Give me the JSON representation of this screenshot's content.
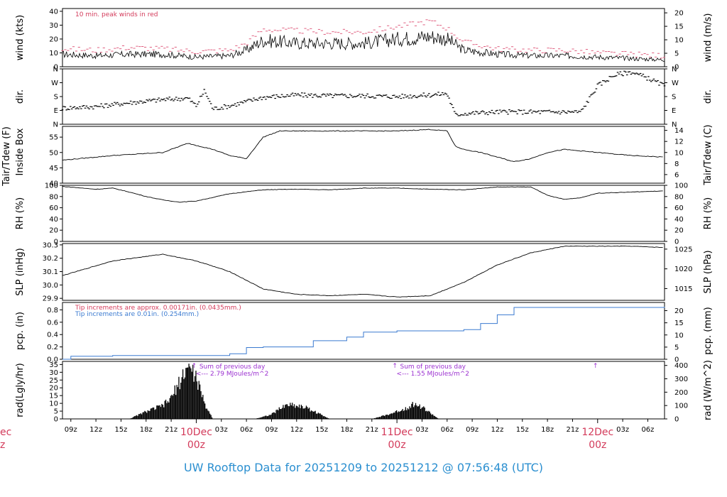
{
  "chart_data": {
    "type": "line",
    "title": "UW Rooftop Data for 20251209  to  20251212 @ 07:56:48  (UTC)",
    "x_tick_labels": [
      "09z",
      "12z",
      "15z",
      "18z",
      "21z",
      "03z",
      "06z",
      "09z",
      "12z",
      "15z",
      "18z",
      "21z",
      "03z",
      "06z",
      "09z",
      "12z",
      "15z",
      "18z",
      "21z",
      "03z",
      "06z"
    ],
    "day_labels": [
      {
        "date": "10Dec",
        "hour": "00z"
      },
      {
        "date": "11Dec",
        "hour": "00z"
      },
      {
        "date": "12Dec",
        "hour": "00z"
      }
    ],
    "cut_day_label": {
      "date": "ec",
      "hour": "z"
    },
    "x_hours_range": [
      -16,
      56
    ],
    "panels": [
      {
        "id": "wind",
        "ylabel_left": "wind (kts)",
        "ylabel_right": "wind (m/s)",
        "ylim": [
          0,
          42
        ],
        "ticks_left": [
          0,
          10,
          20,
          30,
          40
        ],
        "ticks_right": [
          0,
          5,
          10,
          15,
          20
        ],
        "right_scale": 0.5144,
        "annotation": "10 min. peak winds in red",
        "series": [
          {
            "kind": "mean",
            "x": [
              -16,
              -12,
              -8,
              -4,
              0,
              4,
              6,
              8,
              12,
              16,
              20,
              24,
              28,
              30,
              32,
              36,
              40,
              44,
              48,
              52,
              56
            ],
            "y": [
              9,
              8,
              9,
              9,
              7,
              8,
              12,
              19,
              17,
              17,
              17,
              20,
              22,
              20,
              12,
              9,
              8,
              8,
              7,
              6,
              5
            ]
          },
          {
            "kind": "peak",
            "x": [
              -16,
              -12,
              -8,
              -4,
              0,
              4,
              6,
              8,
              12,
              16,
              20,
              24,
              28,
              30,
              32,
              36,
              40,
              44,
              48,
              52,
              56
            ],
            "y": [
              13,
              12,
              14,
              13,
              11,
              12,
              17,
              27,
              26,
              25,
              25,
              29,
              33,
              28,
              18,
              13,
              12,
              12,
              10,
              9,
              8
            ]
          }
        ]
      },
      {
        "id": "dir",
        "ylabel_left": "dir.",
        "ylabel_right": "dir.",
        "ylim": [
          0,
          360
        ],
        "ticks_left_labels": [
          "N",
          "E",
          "S",
          "W",
          "N"
        ],
        "ticks_left_values": [
          0,
          90,
          180,
          270,
          360
        ],
        "series": [
          {
            "kind": "scatter",
            "x": [
              -16,
              -12,
              -8,
              -4,
              -1,
              0,
              1,
              2,
              4,
              8,
              12,
              16,
              20,
              24,
              28,
              30,
              31,
              32,
              36,
              40,
              44,
              46,
              48,
              50,
              52,
              54,
              56
            ],
            "y": [
              105,
              115,
              140,
              160,
              170,
              120,
              220,
              100,
              120,
              175,
              190,
              185,
              185,
              180,
              190,
              200,
              60,
              70,
              80,
              80,
              80,
              80,
              250,
              320,
              340,
              300,
              250
            ]
          }
        ]
      },
      {
        "id": "temp",
        "ylabel_left": "Tair/Tdew (F)",
        "ylabel_left2": "Inside Box",
        "ylabel_right": "Tair/Tdew (C)",
        "ylim": [
          40,
          58.5
        ],
        "ticks_left": [
          40,
          45,
          50,
          55
        ],
        "ticks_right": [
          6,
          8,
          10,
          12,
          14
        ],
        "series": [
          {
            "kind": "line",
            "x": [
              -16,
              -14,
              -10,
              -4,
              -1,
              2,
              4,
              6,
              8,
              10,
              12,
              16,
              20,
              24,
              28,
              30,
              31,
              32,
              34,
              38,
              40,
              42,
              44,
              48,
              52,
              56
            ],
            "y": [
              47.5,
              48,
              49,
              50,
              53,
              51,
              49,
              48,
              55,
              57,
              57,
              57,
              57,
              57,
              57.5,
              57,
              52,
              51,
              50,
              47,
              48,
              50,
              51,
              50,
              49,
              48.5
            ]
          }
        ]
      },
      {
        "id": "rh",
        "ylabel_left": "RH (%)",
        "ylabel_right": "RH (%)",
        "ylim": [
          0,
          100
        ],
        "ticks_left": [
          0,
          20,
          40,
          60,
          80,
          100
        ],
        "ticks_right": [
          0,
          20,
          40,
          60,
          80,
          100
        ],
        "series": [
          {
            "kind": "line",
            "x": [
              -16,
              -12,
              -10,
              -8,
              -6,
              -4,
              -2,
              0,
              4,
              8,
              12,
              16,
              20,
              24,
              28,
              32,
              36,
              40,
              41,
              42,
              44,
              46,
              48,
              52,
              56
            ],
            "y": [
              98,
              93,
              95,
              88,
              80,
              74,
              70,
              72,
              85,
              92,
              93,
              92,
              95,
              95,
              93,
              92,
              97,
              97,
              90,
              82,
              75,
              78,
              86,
              88,
              90
            ]
          }
        ]
      },
      {
        "id": "slp",
        "ylabel_left": "SLP (inHg)",
        "ylabel_right": "SLP (hPa)",
        "ylim": [
          29.885,
          30.31
        ],
        "ticks_left": [
          29.9,
          30.0,
          30.1,
          30.2,
          30.3
        ],
        "ticks_right": [
          1015,
          1020,
          1025
        ],
        "series": [
          {
            "kind": "line",
            "x": [
              -16,
              -10,
              -4,
              0,
              4,
              8,
              12,
              16,
              20,
              24,
              28,
              32,
              36,
              40,
              44,
              48,
              52,
              56
            ],
            "y": [
              30.07,
              30.18,
              30.23,
              30.18,
              30.1,
              29.97,
              29.93,
              29.92,
              29.93,
              29.91,
              29.92,
              30.02,
              30.15,
              30.24,
              30.29,
              30.29,
              30.29,
              30.28
            ]
          }
        ]
      },
      {
        "id": "pcp",
        "ylabel_left": "pcp. (in)",
        "ylabel_right": "pcp. (mm)",
        "ylim": [
          0,
          0.92
        ],
        "ticks_left": [
          0.0,
          0.2,
          0.4,
          0.6,
          0.8
        ],
        "ticks_right": [
          0,
          5,
          10,
          15,
          20
        ],
        "annotation_1": "Tip increments are approx. 0.00171in. (0.0435mm.)",
        "annotation_2": "Tip increments are 0.01in. (0.254mm.)",
        "series": [
          {
            "kind": "step",
            "x": [
              -16,
              -15,
              -10,
              4,
              6,
              8,
              14,
              18,
              20,
              24,
              28,
              32,
              34,
              36,
              38,
              56
            ],
            "y": [
              0,
              0.05,
              0.06,
              0.09,
              0.19,
              0.2,
              0.3,
              0.36,
              0.44,
              0.46,
              0.46,
              0.48,
              0.58,
              0.72,
              0.84,
              0.85
            ]
          }
        ]
      },
      {
        "id": "rad",
        "ylabel_left": "rad(Lgly/hr)",
        "ylabel_right": "rad (W/m^2)",
        "ylim": [
          0,
          37
        ],
        "ticks_left": [
          0,
          5,
          10,
          15,
          20,
          25,
          30,
          35
        ],
        "ticks_right": [
          0,
          100,
          200,
          300,
          400
        ],
        "right_scale": 11.63,
        "daily_sum_notes": [
          {
            "x": 4.3,
            "line1": "Sum of previous day",
            "line2": "<--- 2.79 MJoules/m^2"
          },
          {
            "x": 28.3,
            "line1": "Sum of previous day",
            "line2": "<--- 1.55 MJoules/m^2"
          }
        ],
        "series": [
          {
            "kind": "area",
            "x": [
              -8,
              -6,
              -4,
              -3,
              -2,
              -1,
              0,
              1,
              2,
              5,
              7,
              9,
              10,
              11,
              13,
              16,
              21,
              23,
              25,
              26,
              27,
              29,
              33,
              35
            ],
            "y": [
              0,
              5,
              9,
              14,
              25,
              36,
              28,
              10,
              0,
              0,
              0,
              3,
              7,
              10,
              8,
              0,
              0,
              3,
              7,
              10,
              8,
              0,
              0,
              0
            ]
          }
        ]
      }
    ]
  }
}
